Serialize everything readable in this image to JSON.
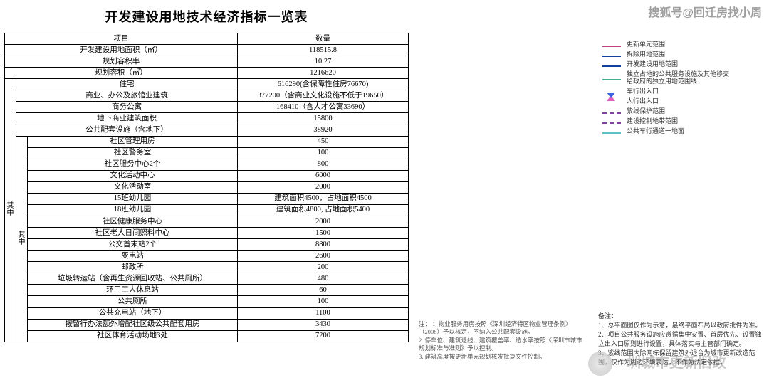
{
  "title": "开发建设用地技术经济指标一览表",
  "header": {
    "item": "项目",
    "qty": "数量"
  },
  "top_rows": [
    {
      "item": "开发建设用地面积（㎡）",
      "qty": "118515.8"
    },
    {
      "item": "规划容积率",
      "qty": "10.27"
    },
    {
      "item": "规划容积（㎡）",
      "qty": "1216620"
    }
  ],
  "group1": {
    "label": "其中",
    "rows": [
      {
        "item": "住宅",
        "qty": "616290(含保障性住房76670)"
      },
      {
        "item": "商业、办公及旅馆业建筑",
        "qty": "377200（含商业文化设施不低于19650）"
      },
      {
        "item": "商务公寓",
        "qty": "168410（含人才公寓33690）"
      },
      {
        "item": "地下商业建筑面积",
        "qty": "15800"
      },
      {
        "item": "公共配套设施（含地下）",
        "qty": "38920"
      }
    ]
  },
  "group2": {
    "label": "其中",
    "rows": [
      {
        "item": "社区管理用房",
        "qty": "450"
      },
      {
        "item": "社区警务室",
        "qty": "100"
      },
      {
        "item": "社区服务中心2个",
        "qty": "800"
      },
      {
        "item": "文化活动中心",
        "qty": "6000"
      },
      {
        "item": "文化活动室",
        "qty": "2000"
      },
      {
        "item": "15班幼儿园",
        "qty": "建筑面积4500，占地面积4500"
      },
      {
        "item": "18班幼儿园",
        "qty": "建筑面积4800, 占地面积5400"
      },
      {
        "item": "社区健康服务中心",
        "qty": "2000"
      },
      {
        "item": "社区老人日间照料中心",
        "qty": "1500"
      },
      {
        "item": "公交首末站2个",
        "qty": "8800"
      },
      {
        "item": "变电站",
        "qty": "2600"
      },
      {
        "item": "邮政所",
        "qty": "200"
      },
      {
        "item": "垃圾转运站（含再生资源回收站、公共厕所）",
        "qty": "480"
      },
      {
        "item": "环卫工人休息站",
        "qty": "60"
      },
      {
        "item": "公共厕所",
        "qty": "100"
      },
      {
        "item": "公共充电站（地下）",
        "qty": "1100"
      },
      {
        "item": "按暂行办法额外增配社区级公共配套用房",
        "qty": "3430"
      },
      {
        "item": "社区体育活动场地3处",
        "qty": "7200"
      }
    ]
  },
  "legend": [
    {
      "label": "更新单元范围",
      "color": "#c04080",
      "style": "solid"
    },
    {
      "label": "拆除用地范围",
      "color": "#1040a0",
      "style": "solid"
    },
    {
      "label": "开发建设用地范围",
      "color": "#1040a0",
      "style": "solid"
    },
    {
      "label": "独立占地的公共服务设施及其他移交给政府的独立用地范围线",
      "color": "#40b090",
      "style": "solid"
    },
    {
      "label": "车行出入口",
      "color": "#e060c0",
      "style": "tri-up"
    },
    {
      "label": "人行出入口",
      "color": "#4060e0",
      "style": "tri-down"
    },
    {
      "label": "紫线保护范围",
      "color": "#8040a0",
      "style": "dashed"
    },
    {
      "label": "建设控制地带范围",
      "color": "#8040a0",
      "style": "dashed"
    },
    {
      "label": "公共车行通道一地面",
      "color": "#60c0c0",
      "style": "solid"
    }
  ],
  "mid_notes": {
    "header": "注：",
    "n1": "1. 物业服务用房按照《深圳经济特区物业管理条例》（2008）予以核定，不纳入公共配套设施。",
    "n2": "2. 停车位、建筑退线、建筑覆盖率、透水率按照《深圳市城市规划标准与准则》予以控制。",
    "n3": "3. 建筑高度按更新单元规划核发批复文件控制。"
  },
  "right_notes": {
    "header": "备注：",
    "n1": "1、总平面图仅作为示意，最终平面布局以政府批件为准。",
    "n2": "2、项目公共服务设施应遵循集中安置、首层优先、设置独立出入口原则进行设置，具体落实与主管部门确定。",
    "n3": "3、紫线范围内除两栋保留建筑外退台为城市更新改造范围，仅作为周边环境表达，不作为法定依据。"
  },
  "watermarks": {
    "top_right": "搜狐号@回迁房找小周",
    "bottom_right": "圳城市更新旧改"
  }
}
